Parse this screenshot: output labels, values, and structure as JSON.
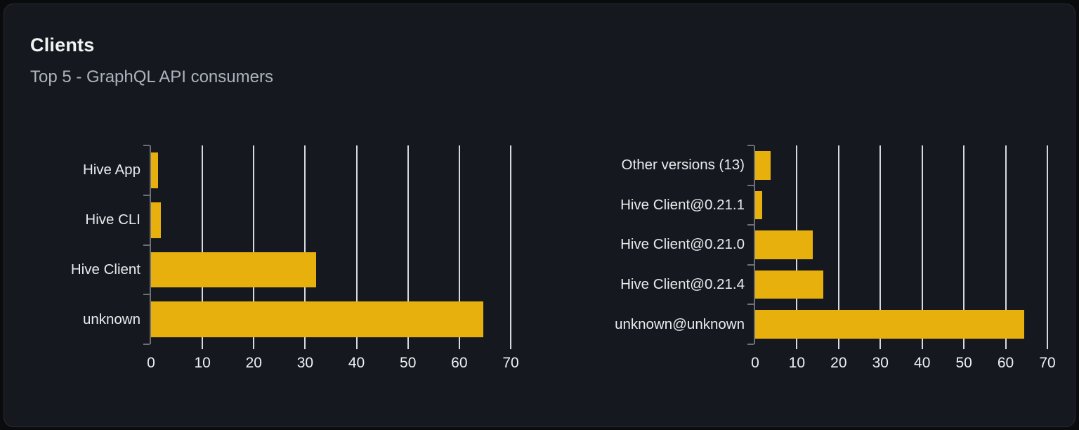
{
  "header": {
    "title": "Clients",
    "subtitle": "Top 5 - GraphQL API consumers"
  },
  "colors": {
    "page_bg": "#0a0b0d",
    "card_bg": "#15191f",
    "card_border": "#262a33",
    "bar": "#e8b00d",
    "gridline": "#d7d9df",
    "axis": "#6e7077",
    "title": "#f2f3f5",
    "subtitle": "#adb3bd",
    "category_label": "#e9ebee",
    "tick_label": "#eff0f3"
  },
  "chart_data": [
    {
      "type": "bar",
      "orientation": "horizontal",
      "name": "clients-by-name",
      "categories": [
        "Hive App",
        "Hive CLI",
        "Hive Client",
        "unknown"
      ],
      "values": [
        1.3,
        1.9,
        32.1,
        64.6
      ],
      "xticks": [
        0,
        10,
        20,
        30,
        40,
        50,
        60,
        70
      ],
      "xlim": [
        0,
        70
      ],
      "grid": true,
      "legend": "none",
      "bar_color": "#e8b00d"
    },
    {
      "type": "bar",
      "orientation": "horizontal",
      "name": "clients-by-version",
      "categories": [
        "Other versions (13)",
        "Hive Client@0.21.1",
        "Hive Client@0.21.0",
        "Hive Client@0.21.4",
        "unknown@unknown"
      ],
      "values": [
        3.7,
        1.6,
        13.8,
        16.4,
        64.4
      ],
      "xticks": [
        0,
        10,
        20,
        30,
        40,
        50,
        60,
        70
      ],
      "xlim": [
        0,
        70
      ],
      "grid": true,
      "legend": "none",
      "bar_color": "#e8b00d"
    }
  ]
}
